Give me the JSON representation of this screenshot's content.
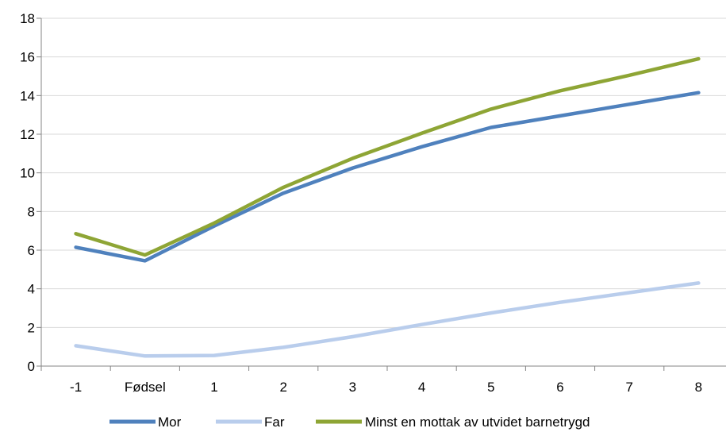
{
  "chart_data": {
    "type": "line",
    "categories": [
      "-1",
      "Fødsel",
      "1",
      "2",
      "3",
      "4",
      "5",
      "6",
      "7",
      "8"
    ],
    "ylim": [
      0,
      18
    ],
    "yticks": [
      "0",
      "2",
      "4",
      "6",
      "8",
      "10",
      "12",
      "14",
      "16",
      "18"
    ],
    "grid": "horizontal",
    "legend_position": "bottom",
    "series": [
      {
        "name": "Mor",
        "color": "#4f81bd",
        "values": [
          6.15,
          5.45,
          7.25,
          8.95,
          10.25,
          11.35,
          12.35,
          12.95,
          13.55,
          14.15
        ]
      },
      {
        "name": "Far",
        "color": "#b9cdec",
        "values": [
          1.05,
          0.52,
          0.55,
          0.97,
          1.52,
          2.15,
          2.75,
          3.3,
          3.8,
          4.3
        ]
      },
      {
        "name": "Minst en mottak av utvidet barnetrygd",
        "color": "#8ea535",
        "values": [
          6.85,
          5.75,
          7.4,
          9.25,
          10.75,
          12.05,
          13.3,
          14.25,
          15.05,
          15.9
        ]
      }
    ]
  }
}
